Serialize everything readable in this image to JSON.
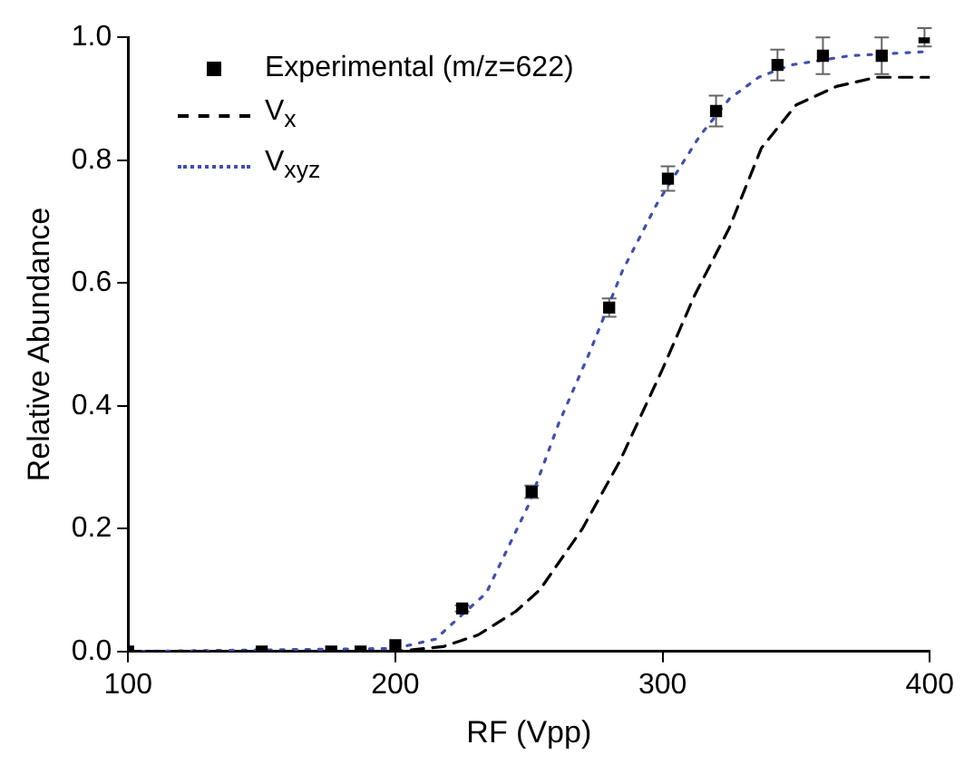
{
  "chart_data": {
    "type": "scatter",
    "xlabel": "RF (Vpp)",
    "ylabel": "Relative Abundance",
    "xlim": [
      100,
      400
    ],
    "ylim": [
      0,
      1.0
    ],
    "xticks": [
      100,
      200,
      300,
      400
    ],
    "yticks": [
      {
        "value": 0,
        "label": "0.0"
      },
      0.2,
      0.4,
      0.6,
      0.8,
      {
        "value": 1,
        "label": "1.0"
      }
    ],
    "grid": false,
    "legend": "top left",
    "series": [
      {
        "name": "Experimental (m/z=622)",
        "marker": "square",
        "color": "#000000",
        "x": [
          100,
          150,
          176,
          187,
          200,
          225,
          251,
          280,
          302,
          320,
          343,
          360,
          382,
          398
        ],
        "values": [
          0,
          0,
          0,
          0,
          0.01,
          0.07,
          0.26,
          0.56,
          0.77,
          0.88,
          0.955,
          0.97,
          0.97,
          1.0
        ],
        "errors": [
          null,
          null,
          null,
          null,
          null,
          0.005,
          0.01,
          0.015,
          0.02,
          0.025,
          0.025,
          0.03,
          0.03,
          0.015
        ]
      },
      {
        "name": "V$_{x}$",
        "type": "line",
        "marker": "none",
        "line_style": "dashed",
        "color": "#000000",
        "x": [
          100,
          200,
          218,
          231,
          245,
          254,
          270,
          284,
          300,
          312,
          325,
          337,
          350,
          365,
          380,
          400
        ],
        "values": [
          0,
          0,
          0.008,
          0.027,
          0.065,
          0.1,
          0.2,
          0.31,
          0.46,
          0.58,
          0.69,
          0.82,
          0.89,
          0.92,
          0.935,
          0.935
        ]
      },
      {
        "name": "V$_{xyz}$",
        "type": "line",
        "marker": "none",
        "line_style": "dotted",
        "color": "#3f4fb0",
        "x": [
          100,
          200,
          215,
          225,
          234,
          250,
          261,
          273,
          285,
          298,
          314,
          325,
          336,
          348,
          370,
          400
        ],
        "values": [
          0,
          0.005,
          0.02,
          0.06,
          0.095,
          0.24,
          0.37,
          0.49,
          0.62,
          0.73,
          0.84,
          0.9,
          0.935,
          0.955,
          0.97,
          0.977
        ]
      }
    ]
  }
}
